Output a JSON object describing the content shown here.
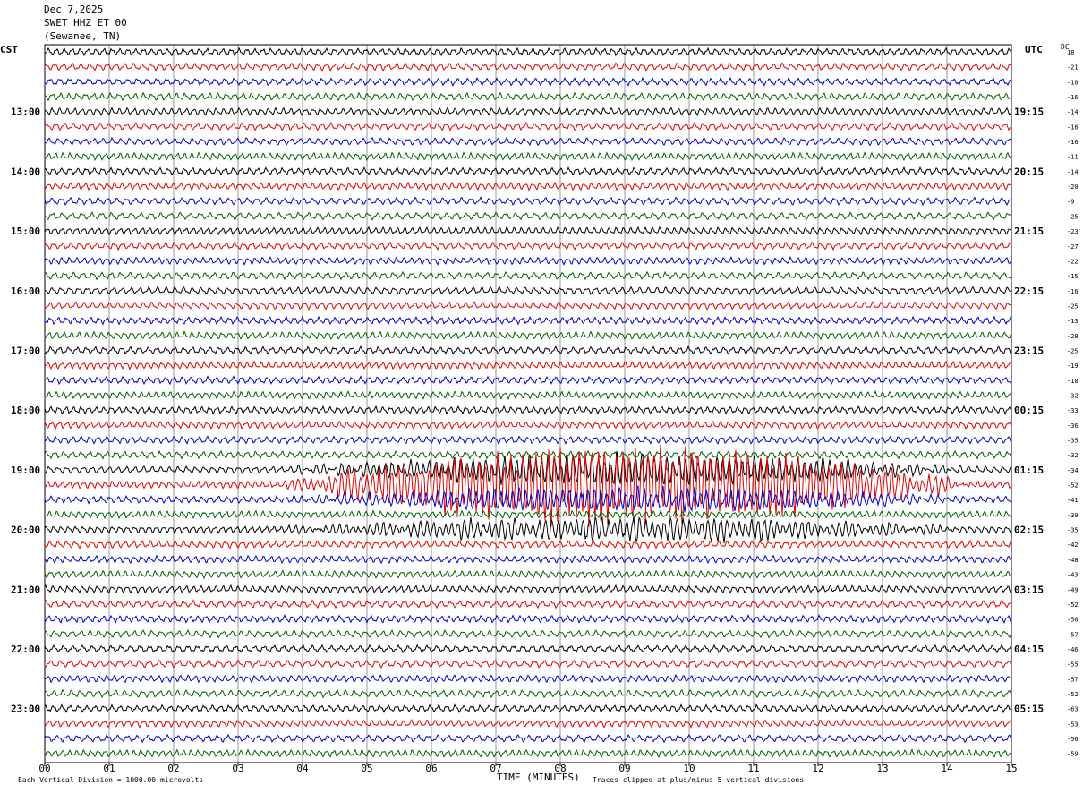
{
  "header": {
    "date": "Dec 7,2025",
    "station": "SWET HHZ ET 00",
    "location": "(Sewanee, TN)"
  },
  "left_zone": "CST",
  "right_zone": "UTC",
  "dc_label": "DC",
  "footer": {
    "scale_note": "Each Vertical Division = 1000.00 microvolts",
    "xlabel": "TIME (MINUTES)",
    "clip_note": "Traces clipped at plus/minus 5 vertical divisions"
  },
  "colors": {
    "trace_cycle": [
      "#000000",
      "#e00000",
      "#0000d0",
      "#006000"
    ],
    "grid": "#999999"
  },
  "chart_data": {
    "type": "line",
    "xlabel": "TIME (MINUTES)",
    "x_ticks": [
      "00",
      "01",
      "02",
      "03",
      "04",
      "05",
      "06",
      "07",
      "08",
      "09",
      "10",
      "11",
      "12",
      "13",
      "14",
      "15"
    ],
    "xlim": [
      0,
      15
    ],
    "lines_per_hour": 4,
    "cst_hour_labels": [
      "13:00",
      "14:00",
      "15:00",
      "16:00",
      "17:00",
      "18:00",
      "19:00",
      "20:00",
      "21:00",
      "22:00",
      "23:00"
    ],
    "utc_hour_labels": [
      "19:15",
      "20:15",
      "21:15",
      "22:15",
      "23:15",
      "00:15",
      "01:15",
      "02:15",
      "03:15",
      "04:15",
      "05:15"
    ],
    "dc_offsets": [
      18,
      -21,
      -10,
      -16,
      -14,
      -16,
      -16,
      -11,
      -14,
      -20,
      -9,
      -25,
      -23,
      -27,
      -22,
      -15,
      -16,
      -25,
      -13,
      -28,
      -25,
      -19,
      -18,
      -32,
      -33,
      -36,
      -35,
      -32,
      -34,
      -52,
      -41,
      -39,
      -35,
      -42,
      -48,
      -43,
      -49,
      -52,
      -50,
      -57,
      -46,
      -55,
      -57,
      -52,
      -63,
      -53,
      -56,
      -59
    ],
    "event": {
      "start_minute": 3.5,
      "end_minute": 14.5,
      "trace_rows": [
        28,
        29,
        30,
        32
      ]
    }
  }
}
